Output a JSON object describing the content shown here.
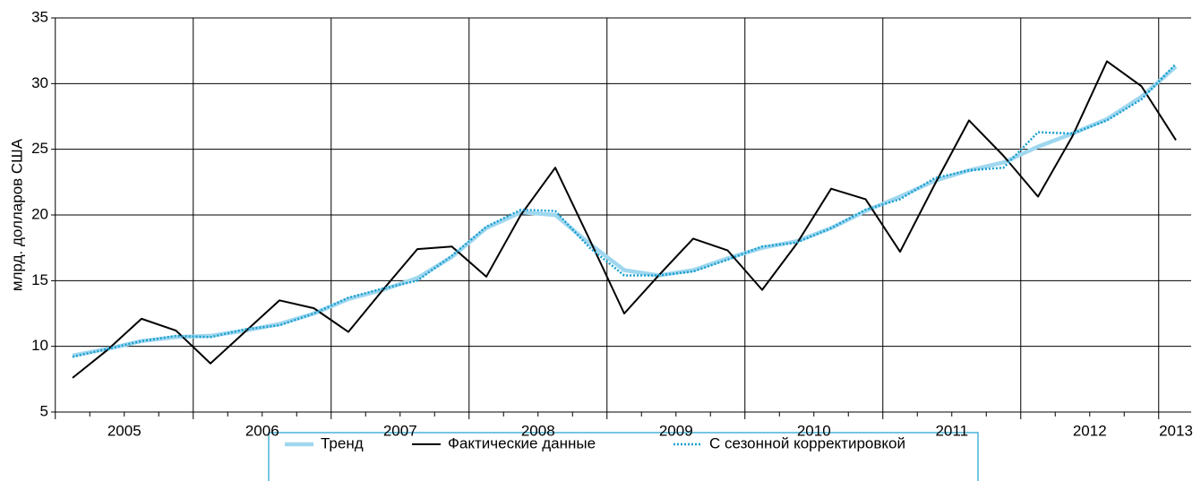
{
  "chart_data": {
    "type": "line",
    "y_label": "млрд. долларов США",
    "categories": [
      null,
      "2005",
      null,
      null,
      null,
      "2006",
      null,
      null,
      null,
      "2007",
      null,
      null,
      null,
      "2008",
      null,
      null,
      null,
      "2009",
      null,
      null,
      null,
      "2010",
      null,
      null,
      null,
      "2011",
      null,
      null,
      null,
      "2012",
      null,
      null,
      "2013"
    ],
    "series": [
      {
        "name": "Тренд",
        "color": "#9fd7ef",
        "values": [
          9.3,
          9.8,
          10.4,
          10.7,
          10.8,
          11.2,
          11.7,
          12.5,
          13.6,
          14.3,
          15.2,
          16.8,
          19.0,
          20.2,
          20.0,
          17.8,
          15.8,
          15.4,
          15.8,
          16.7,
          17.5,
          18.0,
          19.0,
          20.3,
          21.4,
          22.6,
          23.4,
          24.0,
          25.2,
          26.2,
          27.3,
          29.0,
          31.3
        ]
      },
      {
        "name": "Фактические данные",
        "color": "#000000",
        "values": [
          7.6,
          9.7,
          12.1,
          11.2,
          8.7,
          11.1,
          13.5,
          12.9,
          11.1,
          14.3,
          17.4,
          17.6,
          15.3,
          20.0,
          23.6,
          18.1,
          12.5,
          15.4,
          18.2,
          17.3,
          14.3,
          17.8,
          22.0,
          21.2,
          17.2,
          22.3,
          27.2,
          24.5,
          21.4,
          26.0,
          31.7,
          29.8,
          25.7
        ]
      },
      {
        "name": "С сезонной корректировкой",
        "color": "#1a9fcf",
        "values": [
          9.2,
          9.8,
          10.4,
          10.8,
          10.7,
          11.3,
          11.6,
          12.5,
          13.7,
          14.4,
          15.0,
          16.9,
          19.1,
          20.4,
          20.3,
          17.5,
          15.4,
          15.4,
          15.7,
          16.6,
          17.6,
          17.9,
          19.0,
          20.4,
          21.2,
          22.8,
          23.4,
          23.6,
          26.3,
          26.2,
          27.2,
          28.8,
          31.5
        ]
      }
    ],
    "ylim": [
      5,
      35
    ],
    "yticks": [
      5,
      10,
      15,
      20,
      25,
      30,
      35
    ],
    "grid": true
  }
}
